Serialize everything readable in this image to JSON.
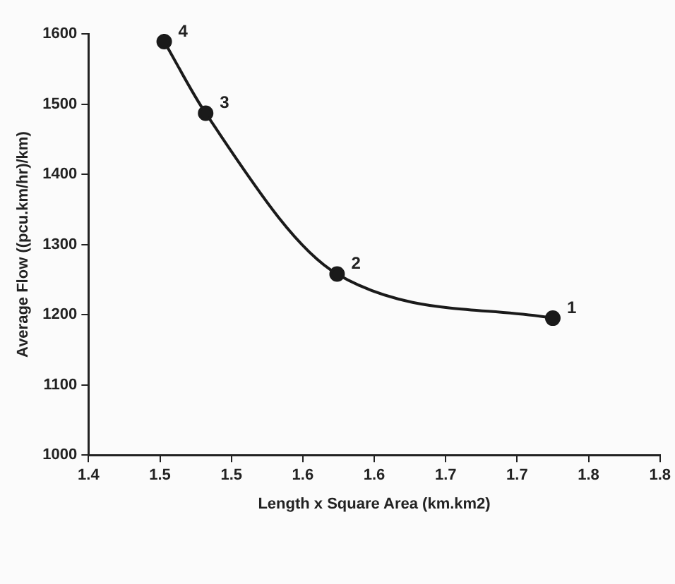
{
  "chart_data": {
    "type": "line",
    "xlabel": "Length x Square Area (km.km2)",
    "ylabel": "Average Flow ((pcu.km/hr)/km)",
    "x": [
      1.453,
      1.482,
      1.574,
      1.725
    ],
    "series": [
      {
        "color": "#1a1a1a",
        "values": [
          1589,
          1487,
          1258,
          1195
        ]
      }
    ],
    "annotations": [
      {
        "text": "4",
        "x": 1.453,
        "y": 1589
      },
      {
        "text": "3",
        "x": 1.482,
        "y": 1487
      },
      {
        "text": "2",
        "x": 1.574,
        "y": 1258
      },
      {
        "text": "1",
        "x": 1.725,
        "y": 1195
      }
    ],
    "xlim": [
      1.4,
      1.8
    ],
    "xticks": [
      1.4,
      {
        "value": 1.45,
        "label": "1.5"
      },
      1.5,
      {
        "value": 1.55,
        "label": "1.6"
      },
      1.6,
      {
        "value": 1.65,
        "label": "1.7"
      },
      1.7,
      {
        "value": 1.75,
        "label": "1.8"
      },
      1.8
    ],
    "ylim": [
      1000,
      1600
    ],
    "yticks": [
      1000,
      1100,
      1200,
      1300,
      1400,
      1500,
      1600
    ],
    "grid": false,
    "legend": false,
    "marker": "circle",
    "line_style": "solid"
  }
}
